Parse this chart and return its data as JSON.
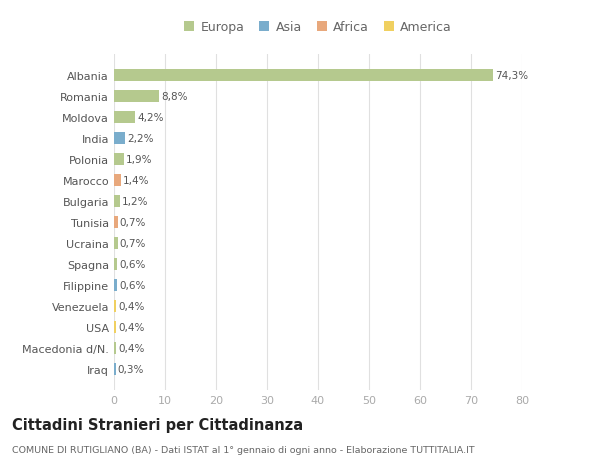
{
  "countries": [
    "Albania",
    "Romania",
    "Moldova",
    "India",
    "Polonia",
    "Marocco",
    "Bulgaria",
    "Tunisia",
    "Ucraina",
    "Spagna",
    "Filippine",
    "Venezuela",
    "USA",
    "Macedonia d/N.",
    "Iraq"
  ],
  "values": [
    74.3,
    8.8,
    4.2,
    2.2,
    1.9,
    1.4,
    1.2,
    0.7,
    0.7,
    0.6,
    0.6,
    0.4,
    0.4,
    0.4,
    0.3
  ],
  "labels": [
    "74,3%",
    "8,8%",
    "4,2%",
    "2,2%",
    "1,9%",
    "1,4%",
    "1,2%",
    "0,7%",
    "0,7%",
    "0,6%",
    "0,6%",
    "0,4%",
    "0,4%",
    "0,4%",
    "0,3%"
  ],
  "continents": [
    "Europa",
    "Europa",
    "Europa",
    "Asia",
    "Europa",
    "Africa",
    "Europa",
    "Africa",
    "Europa",
    "Europa",
    "Asia",
    "America",
    "America",
    "Europa",
    "Asia"
  ],
  "colors": {
    "Europa": "#b5c98e",
    "Asia": "#7aadcc",
    "Africa": "#e8a87c",
    "America": "#f0d060"
  },
  "legend_order": [
    "Europa",
    "Asia",
    "Africa",
    "America"
  ],
  "title": "Cittadini Stranieri per Cittadinanza",
  "subtitle": "COMUNE DI RUTIGLIANO (BA) - Dati ISTAT al 1° gennaio di ogni anno - Elaborazione TUTTITALIA.IT",
  "xlim": [
    0,
    80
  ],
  "xticks": [
    0,
    10,
    20,
    30,
    40,
    50,
    60,
    70,
    80
  ],
  "background_color": "#ffffff",
  "grid_color": "#e0e0e0"
}
